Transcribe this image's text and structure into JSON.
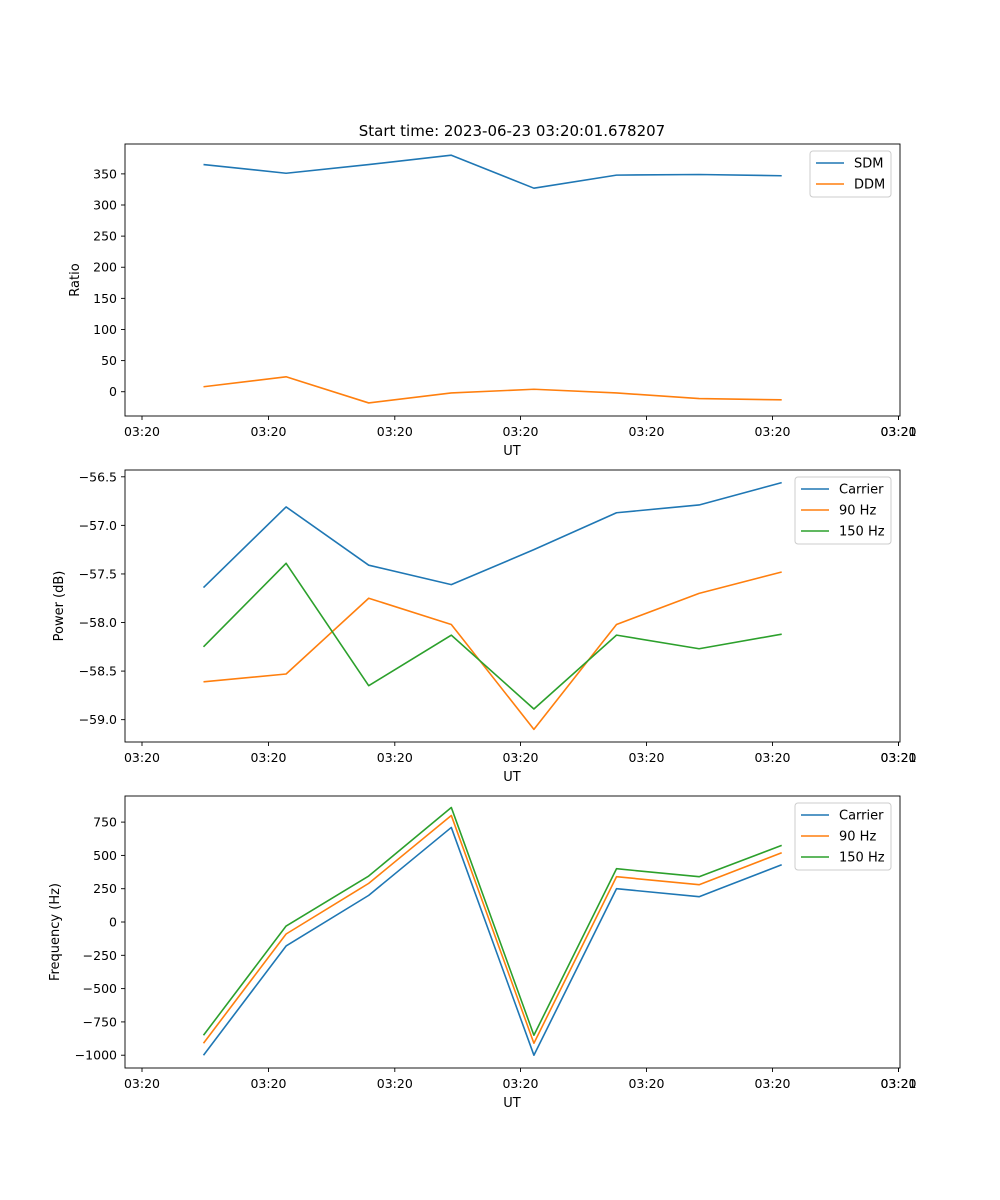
{
  "figure_title": "Start time: 2023-06-23 03:20:01.678207",
  "colors": {
    "blue": "#1f77b4",
    "orange": "#ff7f0e",
    "green": "#2ca02c"
  },
  "chart_data": [
    {
      "type": "line",
      "title": "Start time: 2023-06-23 03:20:01.678207",
      "xlabel": "UT",
      "ylabel": "Ratio",
      "x_tick_labels": [
        "03:20",
        "03:20",
        "03:20",
        "03:20",
        "03:20",
        "03:20",
        "03:20",
        "03:21"
      ],
      "ylim": [
        -39,
        398
      ],
      "y_ticks": [
        0,
        50,
        100,
        150,
        200,
        250,
        300,
        350
      ],
      "y_tick_labels": [
        "0",
        "50",
        "100",
        "150",
        "200",
        "250",
        "300",
        "350"
      ],
      "legend_position": "upper-right",
      "grid": false,
      "x": [
        1,
        2,
        3,
        4,
        5,
        6,
        7,
        8
      ],
      "series": [
        {
          "name": "SDM",
          "color": "#1f77b4",
          "values": [
            365,
            351,
            365,
            380,
            327,
            348,
            349,
            347
          ]
        },
        {
          "name": "DDM",
          "color": "#ff7f0e",
          "values": [
            8,
            24,
            -18,
            -2,
            4,
            -2,
            -11,
            -13
          ]
        }
      ]
    },
    {
      "type": "line",
      "xlabel": "UT",
      "ylabel": "Power (dB)",
      "x_tick_labels": [
        "03:20",
        "03:20",
        "03:20",
        "03:20",
        "03:20",
        "03:20",
        "03:20",
        "03:21"
      ],
      "ylim": [
        -59.23,
        -56.43
      ],
      "y_ticks": [
        -59.0,
        -58.5,
        -58.0,
        -57.5,
        -57.0,
        -56.5
      ],
      "y_tick_labels": [
        "−59.0",
        "−58.5",
        "−58.0",
        "−57.5",
        "−57.0",
        "−56.5"
      ],
      "legend_position": "upper-right",
      "grid": false,
      "x": [
        1,
        2,
        3,
        4,
        5,
        6,
        7,
        8
      ],
      "series": [
        {
          "name": "Carrier",
          "color": "#1f77b4",
          "values": [
            -57.64,
            -56.81,
            -57.41,
            -57.61,
            -57.25,
            -56.87,
            -56.79,
            -56.56
          ]
        },
        {
          "name": "90 Hz",
          "color": "#ff7f0e",
          "values": [
            -58.61,
            -58.53,
            -57.75,
            -58.02,
            -59.1,
            -58.02,
            -57.7,
            -57.48
          ]
        },
        {
          "name": "150 Hz",
          "color": "#2ca02c",
          "values": [
            -58.25,
            -57.39,
            -58.65,
            -58.13,
            -58.89,
            -58.13,
            -58.27,
            -58.12
          ]
        }
      ]
    },
    {
      "type": "line",
      "xlabel": "UT",
      "ylabel": "Frequency (Hz)",
      "x_tick_labels": [
        "03:20",
        "03:20",
        "03:20",
        "03:20",
        "03:20",
        "03:20",
        "03:20",
        "03:21"
      ],
      "ylim": [
        -1096,
        946
      ],
      "y_ticks": [
        -1000,
        -750,
        -500,
        -250,
        0,
        250,
        500,
        750
      ],
      "y_tick_labels": [
        "−1000",
        "−750",
        "−500",
        "−250",
        "0",
        "250",
        "500",
        "750"
      ],
      "legend_position": "upper-right",
      "grid": false,
      "x": [
        1,
        2,
        3,
        4,
        5,
        6,
        7,
        8
      ],
      "series": [
        {
          "name": "Carrier",
          "color": "#1f77b4",
          "values": [
            -1000,
            -180,
            200,
            710,
            -1000,
            250,
            190,
            430
          ]
        },
        {
          "name": "90 Hz",
          "color": "#ff7f0e",
          "values": [
            -910,
            -90,
            290,
            800,
            -910,
            340,
            280,
            520
          ]
        },
        {
          "name": "150 Hz",
          "color": "#2ca02c",
          "values": [
            -850,
            -30,
            345,
            860,
            -850,
            400,
            340,
            575
          ]
        }
      ]
    }
  ]
}
